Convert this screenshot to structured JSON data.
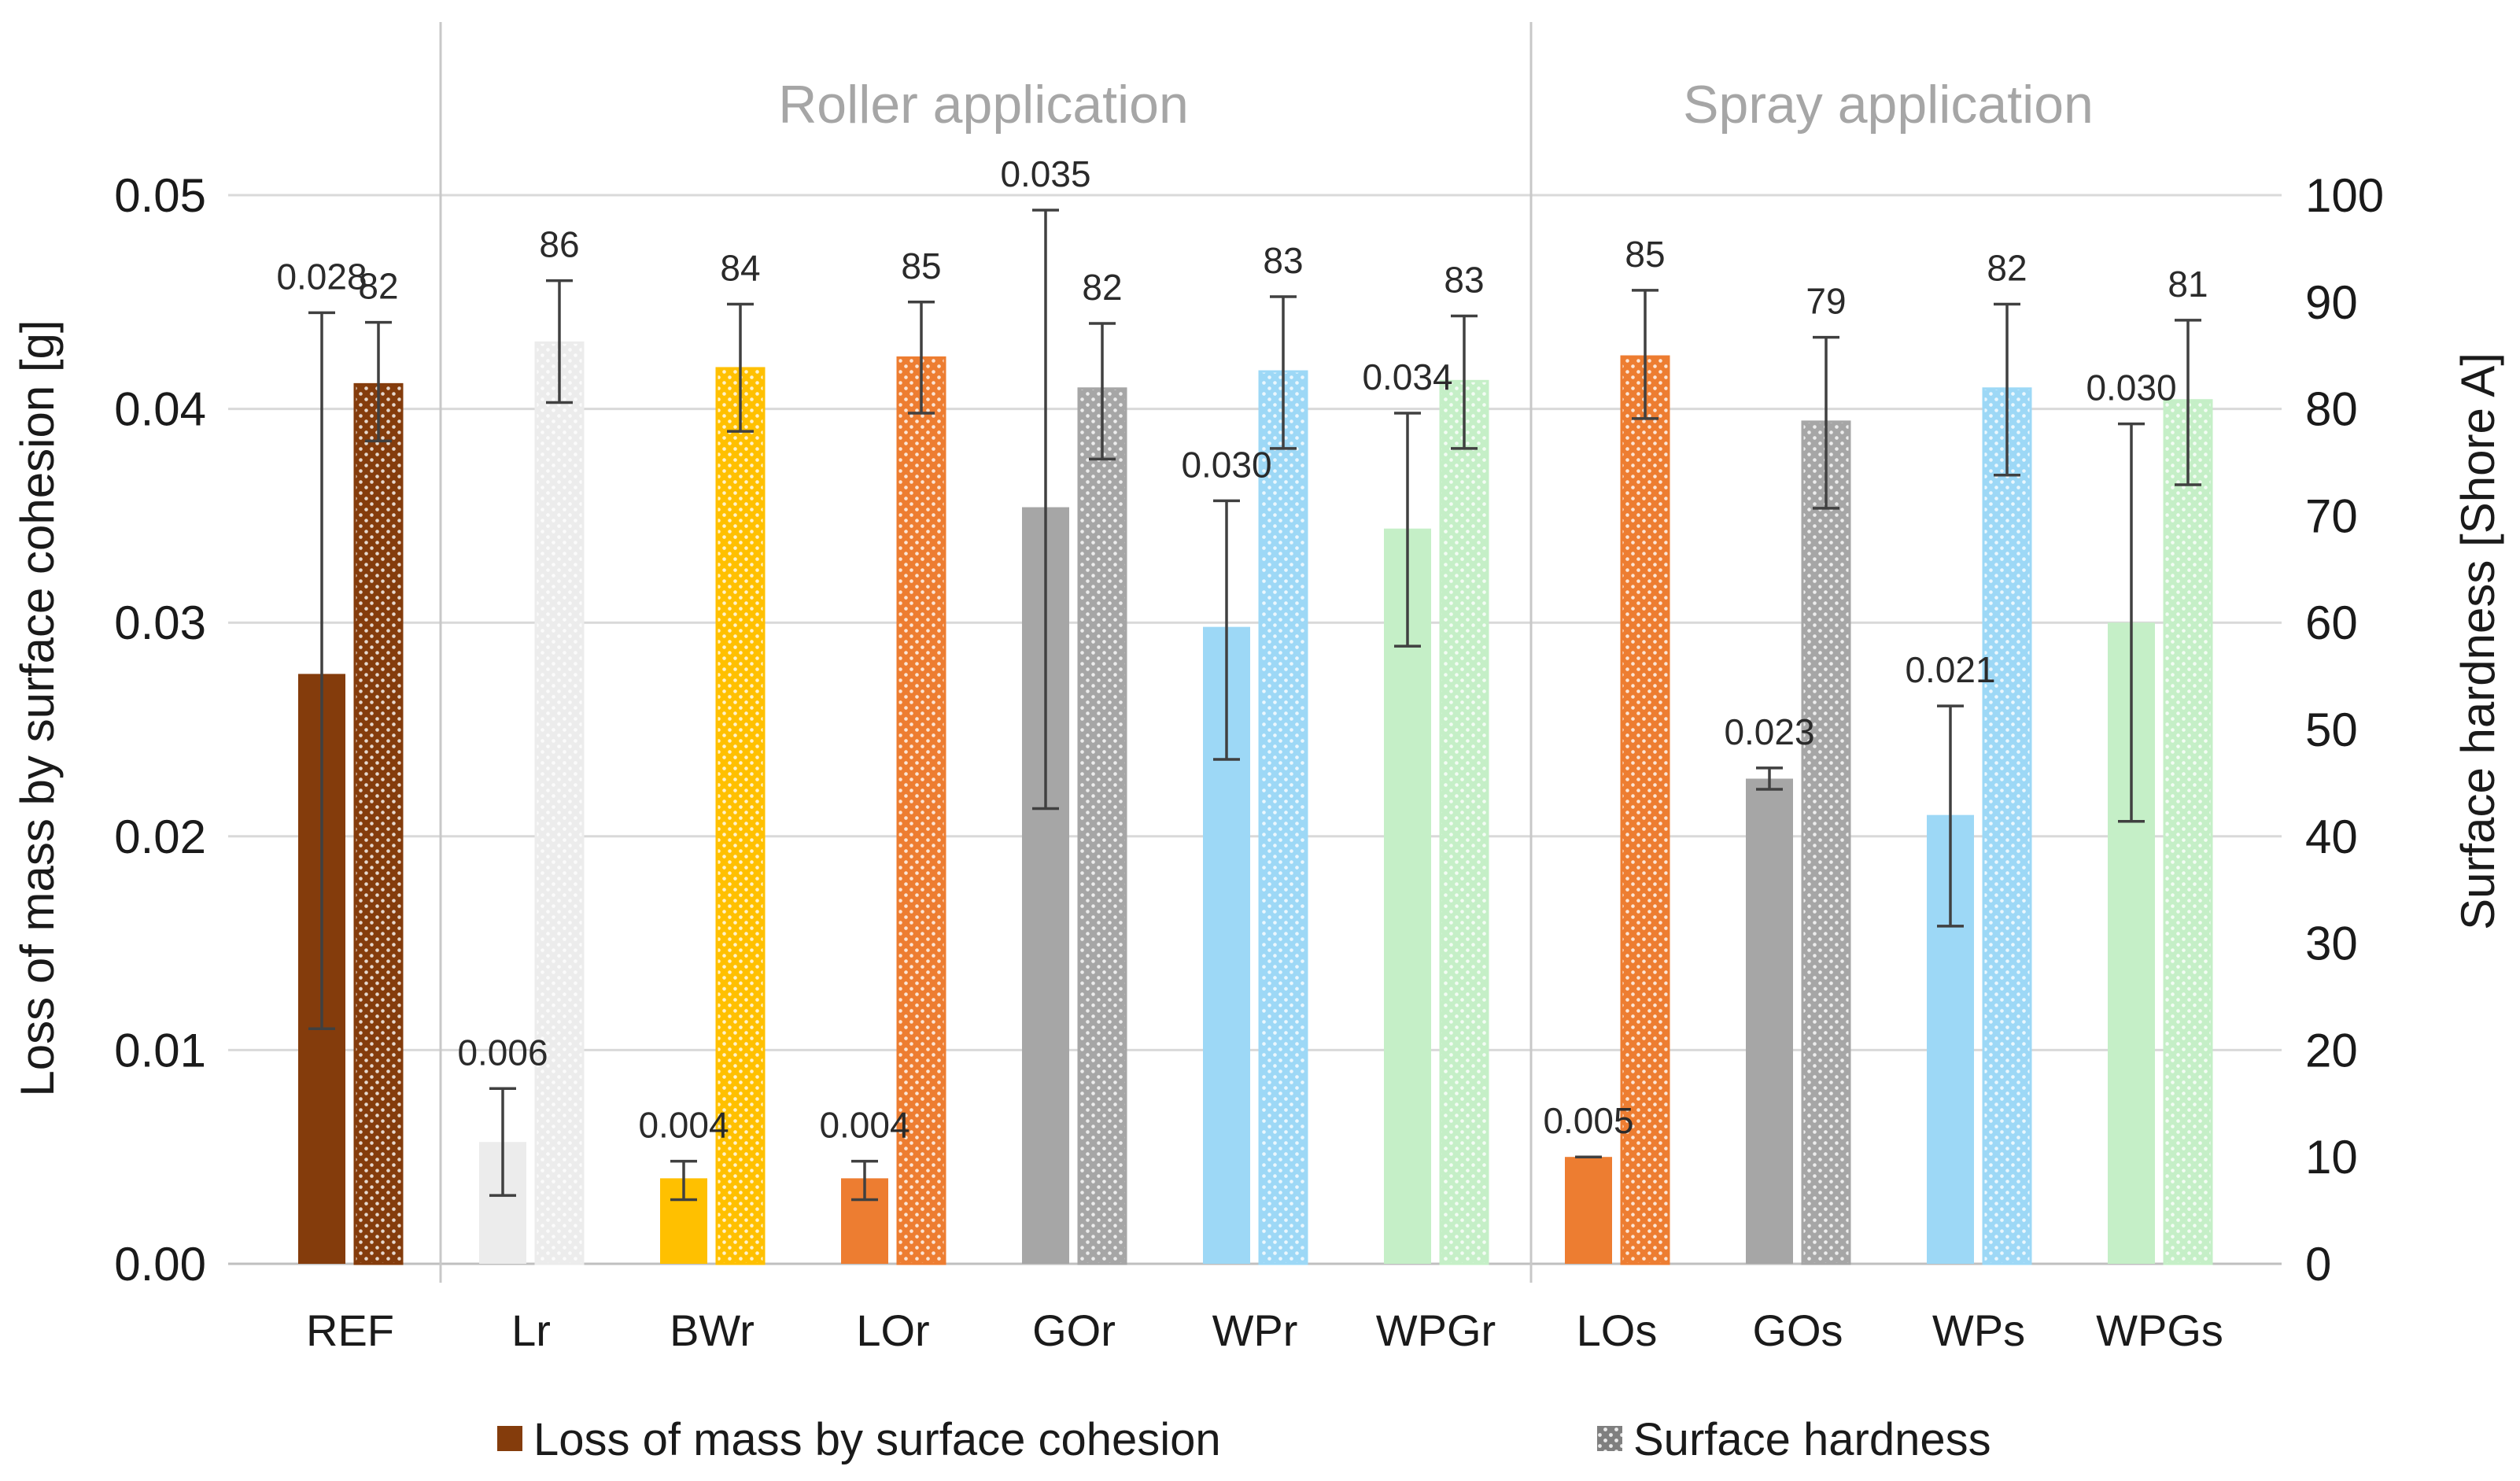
{
  "chart_data": {
    "type": "bar",
    "categories": [
      "REF",
      "Lr",
      "BWr",
      "LOr",
      "GOr",
      "WPr",
      "WPGr",
      "LOs",
      "GOs",
      "WPs",
      "WPGs"
    ],
    "colors": [
      "#843c0c",
      "#ececec",
      "#ffc000",
      "#ed7d31",
      "#a6a6a6",
      "#9dd8f6",
      "#c5efc7",
      "#ed7d31",
      "#a6a6a6",
      "#9dd8f6",
      "#c5efc7"
    ],
    "groups": [
      {
        "label": "Roller application",
        "from": 1,
        "to": 6
      },
      {
        "label": "Spray application",
        "from": 7,
        "to": 10
      }
    ],
    "series": [
      {
        "name": "Loss of mass by surface cohesion",
        "axis": "left",
        "values": [
          0.0276,
          0.0057,
          0.004,
          0.004,
          0.0354,
          0.0298,
          0.0344,
          0.005,
          0.0227,
          0.021,
          0.03
        ],
        "error_low": [
          0.011,
          0.0032,
          0.003,
          0.003,
          0.0213,
          0.0236,
          0.0289,
          0.005,
          0.0222,
          0.0158,
          0.0207
        ],
        "error_high": [
          0.0445,
          0.0082,
          0.0048,
          0.0048,
          0.0493,
          0.0357,
          0.0398,
          0.005,
          0.0232,
          0.0261,
          0.0393
        ],
        "labels": [
          "0.028",
          "0.006",
          "0.004",
          "0.004",
          "0.035",
          "0.030",
          "0.034",
          "0.005",
          "0.023",
          "0.021",
          "0.030"
        ]
      },
      {
        "name": "Surface hardness",
        "axis": "right",
        "values": [
          82.3,
          86.2,
          83.8,
          84.8,
          81.9,
          83.5,
          82.6,
          84.9,
          78.8,
          81.9,
          80.8
        ],
        "error_low": [
          77.0,
          80.6,
          77.9,
          79.6,
          75.3,
          76.3,
          76.3,
          79.1,
          70.7,
          73.8,
          72.9
        ],
        "error_high": [
          88.1,
          92.0,
          89.8,
          90.0,
          88.0,
          90.5,
          88.7,
          91.1,
          86.7,
          89.8,
          88.3
        ],
        "labels": [
          "82",
          "86",
          "84",
          "85",
          "82",
          "83",
          "83",
          "85",
          "79",
          "82",
          "81"
        ]
      }
    ],
    "y_left": {
      "label": "Loss of mass by surface cohesion [g]",
      "range": [
        0,
        0.05
      ],
      "ticks": [
        "0.00",
        "0.01",
        "0.02",
        "0.03",
        "0.04",
        "0.05"
      ]
    },
    "y_right": {
      "label": "Surface hardness [Shore A]",
      "range": [
        0,
        100
      ],
      "ticks": [
        "0",
        "10",
        "20",
        "30",
        "40",
        "50",
        "60",
        "70",
        "80",
        "90",
        "100"
      ]
    },
    "grid": true,
    "legend": "bottom"
  }
}
